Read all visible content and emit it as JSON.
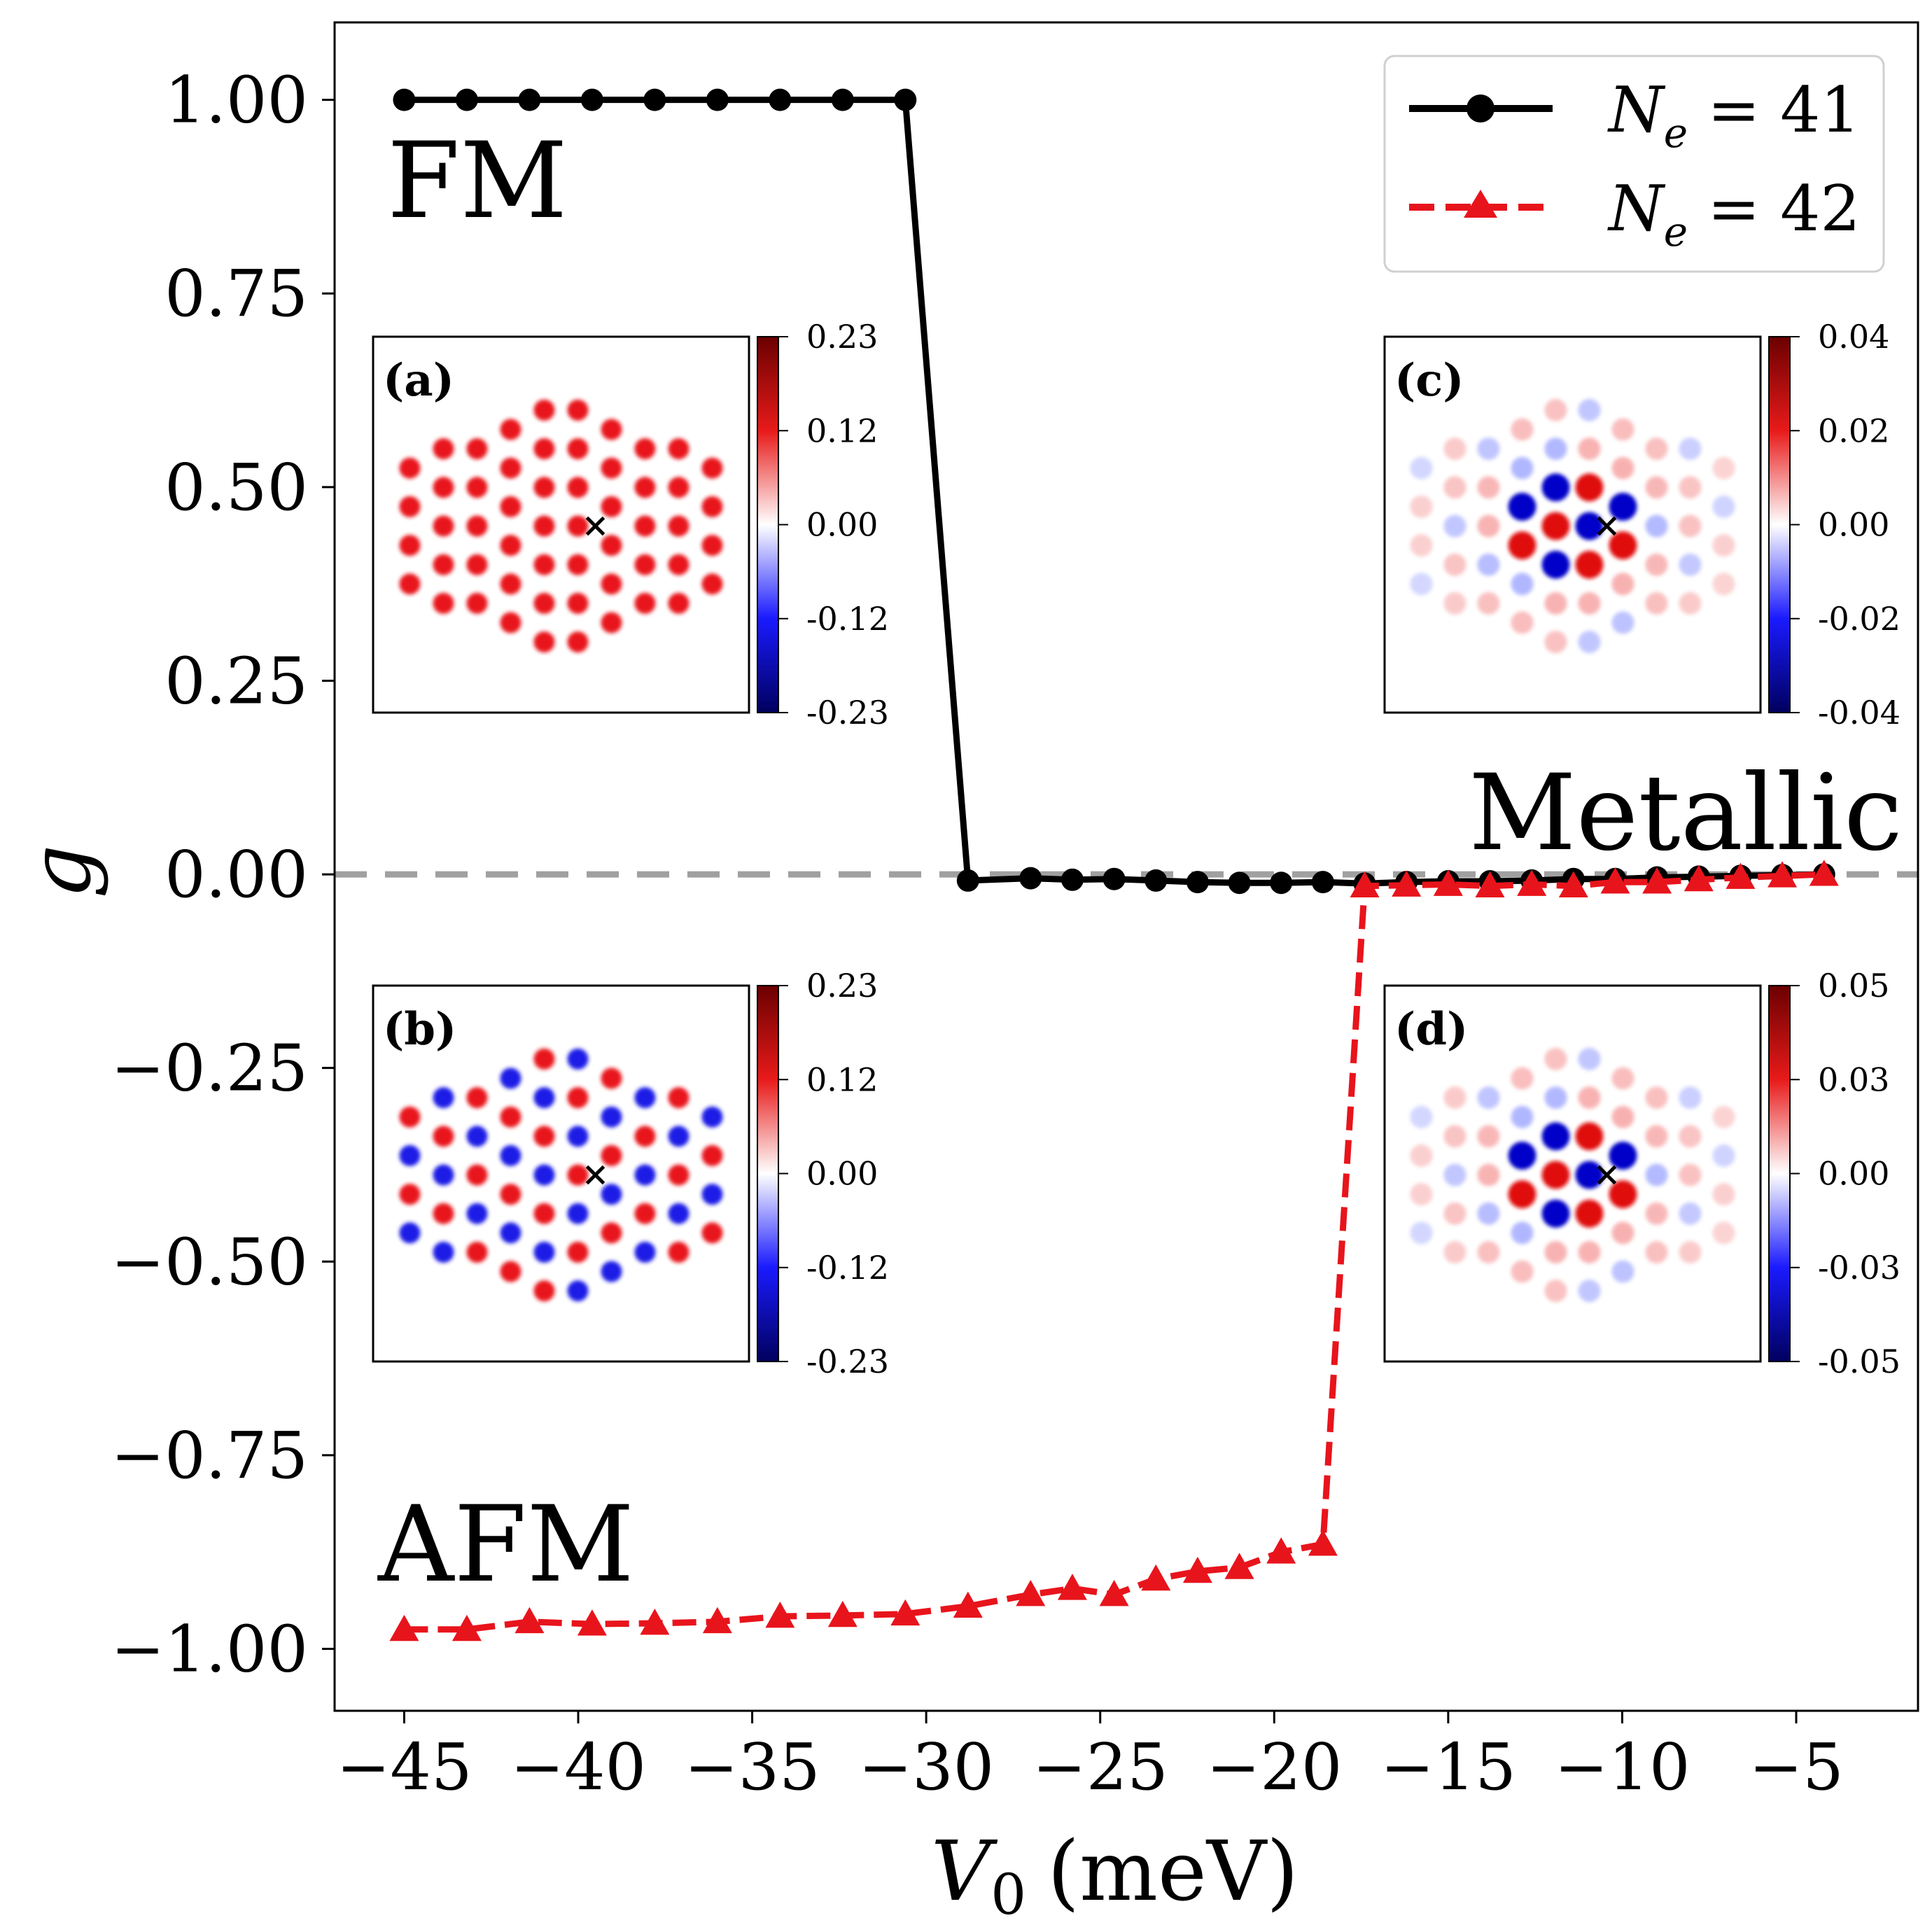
{
  "chart_data": {
    "type": "line",
    "title": "",
    "xlabel": "V_0 (meV)",
    "xlabel_main": "V",
    "xlabel_sub": "0",
    "xlabel_unit": "(meV)",
    "ylabel": "g",
    "xlim": [
      -47,
      -1.5
    ],
    "ylim": [
      -1.08,
      1.1
    ],
    "x_ticks": [
      -45,
      -40,
      -35,
      -30,
      -25,
      -20,
      -15,
      -10,
      -5
    ],
    "x_tick_labels": [
      "−45",
      "−40",
      "−35",
      "−30",
      "−25",
      "−20",
      "−15",
      "−10",
      "−5"
    ],
    "y_ticks": [
      1.0,
      0.75,
      0.5,
      0.25,
      0.0,
      -0.25,
      -0.5,
      -0.75,
      -1.0
    ],
    "y_tick_labels": [
      "1.00",
      "0.75",
      "0.50",
      "0.25",
      "0.00",
      "−0.25",
      "−0.50",
      "−0.75",
      "−1.00"
    ],
    "reference_line": {
      "y": 0.0,
      "style": "dashed",
      "color": "#a0a0a0"
    },
    "series": [
      {
        "name": "N_e = 41",
        "label_main": "N",
        "label_sub": "e",
        "label_rest": "= 41",
        "color": "#000000",
        "linestyle": "solid",
        "marker": "circle",
        "x": [
          -45,
          -43.2,
          -41.4,
          -39.6,
          -37.8,
          -36.0,
          -34.2,
          -32.4,
          -30.6,
          -28.8,
          -27.0,
          -25.8,
          -24.6,
          -23.4,
          -22.2,
          -21.0,
          -19.8,
          -18.6,
          -17.4,
          -16.2,
          -15.0,
          -13.8,
          -12.6,
          -11.4,
          -10.2,
          -9.0,
          -7.8,
          -6.6,
          -5.4,
          -4.2
        ],
        "y": [
          1.0,
          1.0,
          1.0,
          1.0,
          1.0,
          1.0,
          1.0,
          1.0,
          1.0,
          -0.008,
          -0.005,
          -0.007,
          -0.006,
          -0.008,
          -0.01,
          -0.011,
          -0.011,
          -0.01,
          -0.012,
          -0.01,
          -0.009,
          -0.009,
          -0.008,
          -0.006,
          -0.006,
          -0.004,
          -0.003,
          -0.002,
          -0.001,
          0.0
        ]
      },
      {
        "name": "N_e = 42",
        "label_main": "N",
        "label_sub": "e",
        "label_rest": "= 42",
        "color": "#e8141c",
        "linestyle": "dashed",
        "marker": "triangle",
        "x": [
          -45,
          -43.2,
          -41.4,
          -39.6,
          -37.8,
          -36.0,
          -34.2,
          -32.4,
          -30.6,
          -28.8,
          -27.0,
          -25.8,
          -24.6,
          -23.4,
          -22.2,
          -21.0,
          -19.8,
          -18.6,
          -17.4,
          -16.2,
          -15.0,
          -13.8,
          -12.6,
          -11.4,
          -10.2,
          -9.0,
          -7.8,
          -6.6,
          -5.4,
          -4.2
        ],
        "y": [
          -0.975,
          -0.975,
          -0.965,
          -0.968,
          -0.967,
          -0.965,
          -0.958,
          -0.957,
          -0.955,
          -0.945,
          -0.93,
          -0.922,
          -0.93,
          -0.91,
          -0.9,
          -0.895,
          -0.875,
          -0.865,
          -0.015,
          -0.014,
          -0.013,
          -0.015,
          -0.013,
          -0.015,
          -0.01,
          -0.01,
          -0.007,
          -0.004,
          -0.002,
          0.0
        ]
      }
    ],
    "region_labels": [
      "FM",
      "Metallic",
      "AFM"
    ],
    "insets": [
      {
        "panel": "(a)",
        "cbar_ticks": [
          "0.23",
          "0.12",
          "0.00",
          "-0.12",
          "-0.23"
        ],
        "pattern": "ferro"
      },
      {
        "panel": "(b)",
        "cbar_ticks": [
          "0.23",
          "0.12",
          "0.00",
          "-0.12",
          "-0.23"
        ],
        "pattern": "antiferro"
      },
      {
        "panel": "(c)",
        "cbar_ticks": [
          "0.04",
          "0.02",
          "0.00",
          "-0.02",
          "-0.04"
        ],
        "pattern": "metallic"
      },
      {
        "panel": "(d)",
        "cbar_ticks": [
          "0.05",
          "0.03",
          "0.00",
          "-0.03",
          "-0.05"
        ],
        "pattern": "metallic"
      }
    ],
    "legend_position": "top-right",
    "grid": false
  }
}
